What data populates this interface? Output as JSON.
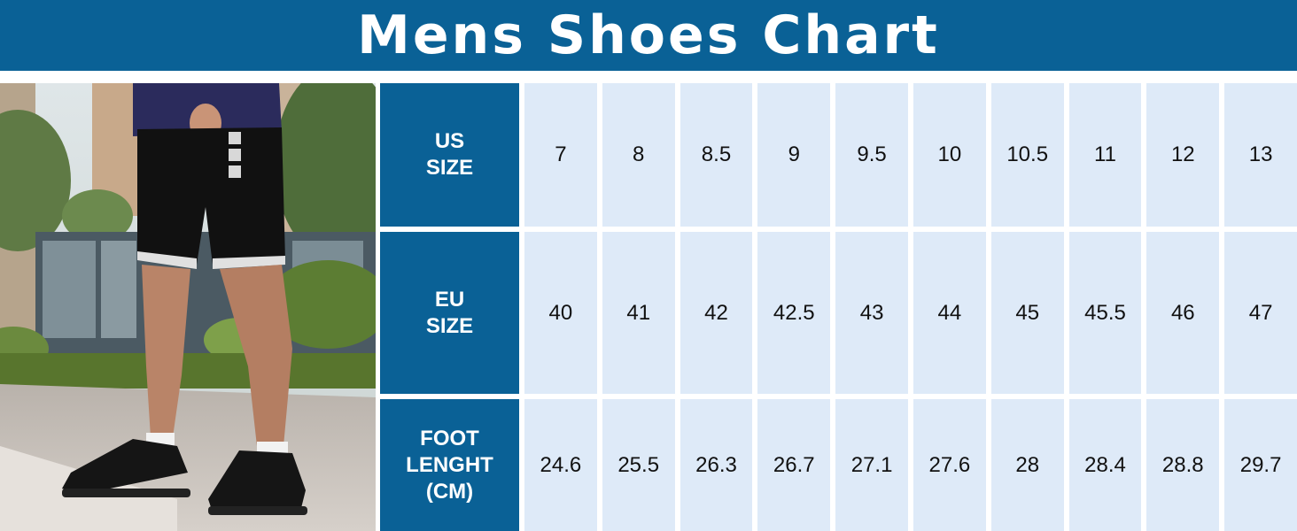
{
  "title": "Mens Shoes Chart",
  "colors": {
    "brand_blue": "#0a6196",
    "cell_bg": "#deeaf8",
    "text_dark": "#111111"
  },
  "photo": {
    "description_icon": "person-legs-sneakers-photo"
  },
  "table": {
    "rows": [
      {
        "header": "US\nSIZE",
        "values": [
          "7",
          "8",
          "8.5",
          "9",
          "9.5",
          "10",
          "10.5",
          "11",
          "12",
          "13"
        ]
      },
      {
        "header": "EU\nSIZE",
        "values": [
          "40",
          "41",
          "42",
          "42.5",
          "43",
          "44",
          "45",
          "45.5",
          "46",
          "47"
        ]
      },
      {
        "header": "FOOT\nLENGHT\n(CM)",
        "values": [
          "24.6",
          "25.5",
          "26.3",
          "26.7",
          "27.1",
          "27.6",
          "28",
          "28.4",
          "28.8",
          "29.7"
        ]
      }
    ]
  }
}
